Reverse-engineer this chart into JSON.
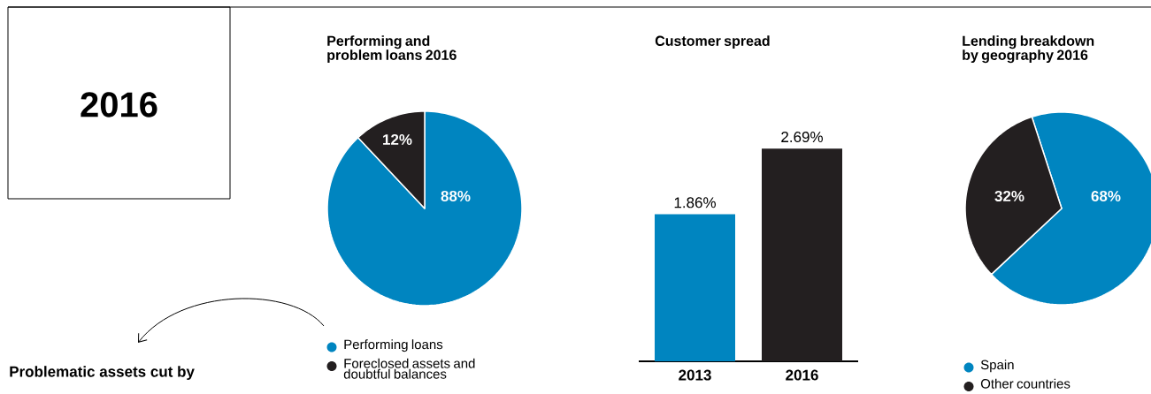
{
  "chart_data": [
    {
      "type": "other",
      "title": "2016",
      "annotations": [
        "Problematic assets cut by"
      ]
    },
    {
      "type": "pie",
      "title": "Performing and problem loans 2016",
      "categories": [
        "Performing loans",
        "Foreclosed assets and doubtful balances"
      ],
      "values": [
        88,
        12
      ],
      "colors": [
        "#0085c0",
        "#231f20"
      ],
      "value_labels": [
        "88%",
        "12%"
      ],
      "legend": "bottom"
    },
    {
      "type": "bar",
      "title": "Customer spread",
      "categories": [
        "2013",
        "2016"
      ],
      "values": [
        1.86,
        2.69
      ],
      "colors": [
        "#0085c0",
        "#231f20"
      ],
      "value_labels": [
        "1.86%",
        "2.69%"
      ]
    },
    {
      "type": "pie",
      "title": "Lending breakdown by geography 2016",
      "categories": [
        "Spain",
        "Other countries"
      ],
      "values": [
        68,
        32
      ],
      "colors": [
        "#0085c0",
        "#231f20"
      ],
      "value_labels": [
        "68%",
        "32%"
      ],
      "legend": "bottom"
    }
  ]
}
